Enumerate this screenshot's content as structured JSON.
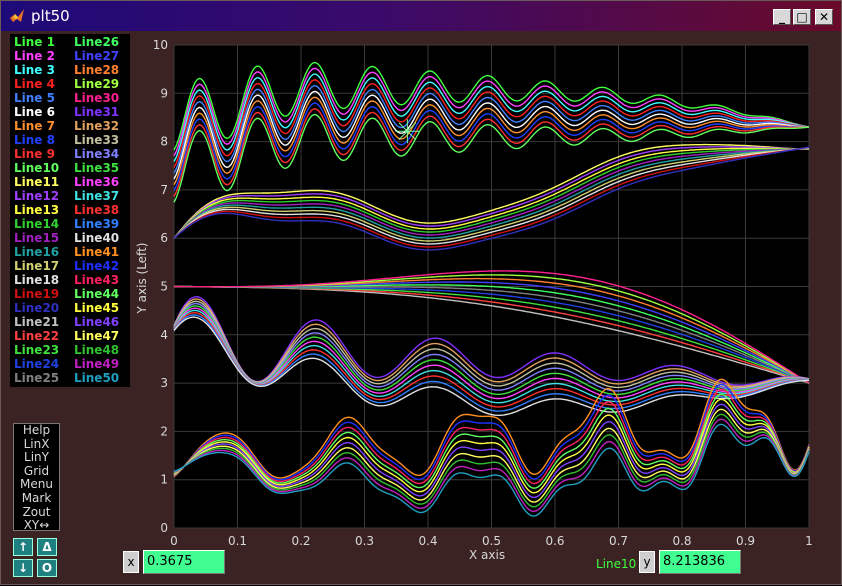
{
  "window": {
    "title": "plt50",
    "minimize_symbol": "_",
    "maximize_symbol": "□",
    "close_symbol": "✕",
    "app_icon": "matlab-logo-icon"
  },
  "legend": {
    "entries": [
      {
        "label": "Line 1",
        "color": "#40ff40"
      },
      {
        "label": "Line 2",
        "color": "#ff40ff"
      },
      {
        "label": "Line 3",
        "color": "#40ffff"
      },
      {
        "label": "Line 4",
        "color": "#ff2020"
      },
      {
        "label": "Line 5",
        "color": "#4080ff"
      },
      {
        "label": "Line 6",
        "color": "#ffffff"
      },
      {
        "label": "Line 7",
        "color": "#ff9030"
      },
      {
        "label": "Line 8",
        "color": "#2040ff"
      },
      {
        "label": "Line 9",
        "color": "#ff3030"
      },
      {
        "label": "Line10",
        "color": "#60ff60"
      },
      {
        "label": "Line11",
        "color": "#ffff60"
      },
      {
        "label": "Line12",
        "color": "#a040ff"
      },
      {
        "label": "Line13",
        "color": "#ffff40"
      },
      {
        "label": "Line14",
        "color": "#30d030"
      },
      {
        "label": "Line15",
        "color": "#a020c0"
      },
      {
        "label": "Line16",
        "color": "#20a0a0"
      },
      {
        "label": "Line17",
        "color": "#d0d070"
      },
      {
        "label": "Line18",
        "color": "#e0e0e0"
      },
      {
        "label": "Line19",
        "color": "#d01010"
      },
      {
        "label": "Line20",
        "color": "#3030c0"
      },
      {
        "label": "Line21",
        "color": "#c0c0c0"
      },
      {
        "label": "Line22",
        "color": "#ff4040"
      },
      {
        "label": "Line23",
        "color": "#40e040"
      },
      {
        "label": "Line24",
        "color": "#2040e0"
      },
      {
        "label": "Line25",
        "color": "#808080"
      },
      {
        "label": "Line26",
        "color": "#40ff60"
      },
      {
        "label": "Line27",
        "color": "#4040ff"
      },
      {
        "label": "Line28",
        "color": "#ff8030"
      },
      {
        "label": "Line29",
        "color": "#a0ff40"
      },
      {
        "label": "Line30",
        "color": "#ff2090"
      },
      {
        "label": "Line31",
        "color": "#8030ff"
      },
      {
        "label": "Line32",
        "color": "#e0a060"
      },
      {
        "label": "Line33",
        "color": "#c0c0a0"
      },
      {
        "label": "Line34",
        "color": "#8080ff"
      },
      {
        "label": "Line35",
        "color": "#40e040"
      },
      {
        "label": "Line36",
        "color": "#ff40ff"
      },
      {
        "label": "Line37",
        "color": "#40e0e0"
      },
      {
        "label": "Line38",
        "color": "#ff3030"
      },
      {
        "label": "Line39",
        "color": "#3080ff"
      },
      {
        "label": "Line40",
        "color": "#e0e0e0"
      },
      {
        "label": "Line41",
        "color": "#ff9020"
      },
      {
        "label": "Line42",
        "color": "#2030ff"
      },
      {
        "label": "Line43",
        "color": "#ff2060"
      },
      {
        "label": "Line44",
        "color": "#60ff60"
      },
      {
        "label": "Line45",
        "color": "#ffff40"
      },
      {
        "label": "Line46",
        "color": "#8040ff"
      },
      {
        "label": "Line47",
        "color": "#ffff60"
      },
      {
        "label": "Line48",
        "color": "#30c030"
      },
      {
        "label": "Line49",
        "color": "#c020c0"
      },
      {
        "label": "Line50",
        "color": "#20a0c0"
      }
    ]
  },
  "menu": {
    "items": [
      "Help",
      "LinX",
      "LinY",
      "Grid",
      "Menu",
      "Mark",
      "Zout",
      "XY↔"
    ]
  },
  "toolbar": {
    "up_label": "↑",
    "delta_label": "Δ",
    "down_label": "↓",
    "o_label": "O"
  },
  "readout": {
    "x_label": "x",
    "x_value": "0.3675",
    "line_label": "Line10",
    "y_label": "y",
    "y_value": "8.213836"
  },
  "chart_data": {
    "type": "line",
    "xlabel": "X axis",
    "ylabel": "Y axis (Left)",
    "xlim": [
      0,
      1
    ],
    "ylim": [
      0,
      10
    ],
    "xticks": [
      "0",
      "0.1",
      "0.2",
      "0.3",
      "0.4",
      "0.5",
      "0.6",
      "0.7",
      "0.8",
      "0.9",
      "1"
    ],
    "yticks": [
      "0",
      "1",
      "2",
      "3",
      "4",
      "5",
      "6",
      "7",
      "8",
      "9",
      "10"
    ],
    "grid": true,
    "series_count": 50,
    "cursor": {
      "x": 0.3675,
      "y": 8.213836,
      "series": "Line10"
    }
  }
}
